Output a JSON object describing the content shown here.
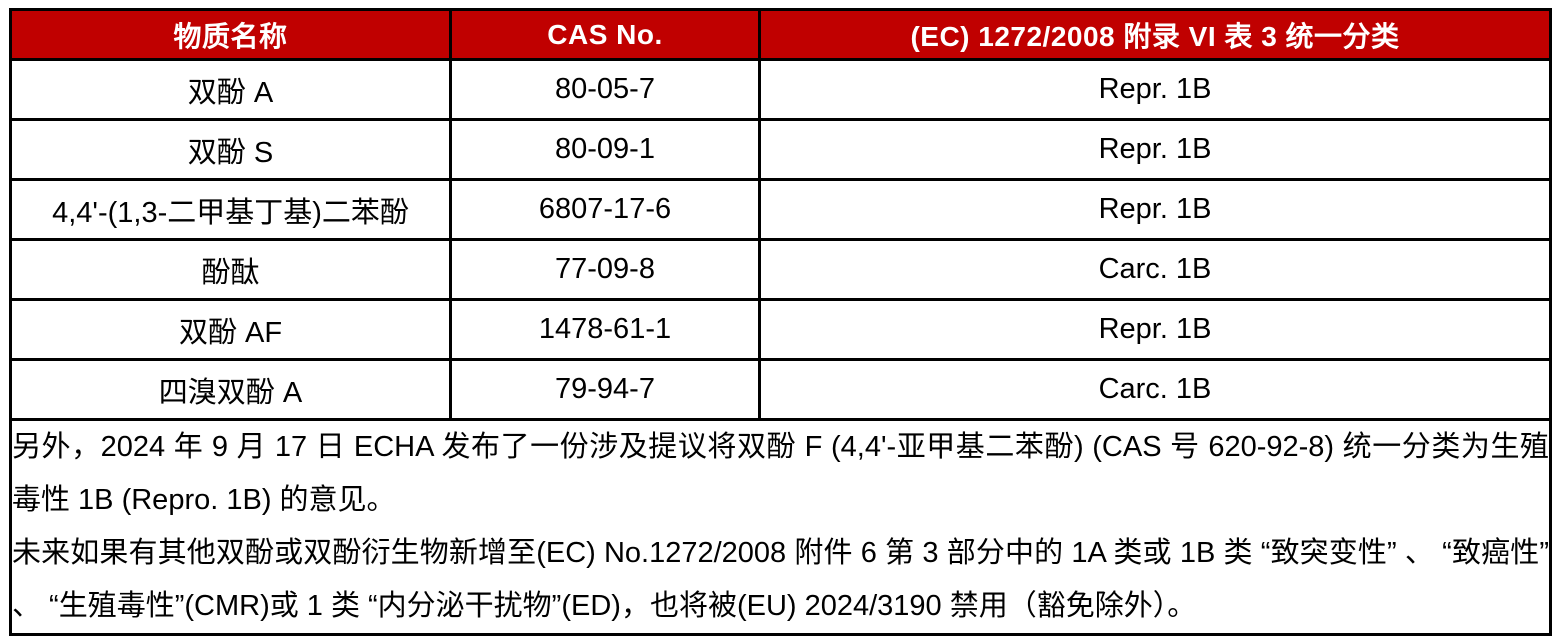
{
  "colors": {
    "header_bg": "#C00000",
    "header_text": "#FFFFFF",
    "border": "#000000",
    "cell_bg": "#FFFFFF",
    "cell_text": "#000000"
  },
  "table": {
    "headers": {
      "substance": "物质名称",
      "cas": "CAS No.",
      "classification": "(EC) 1272/2008 附录 VI 表 3 统一分类"
    },
    "rows": [
      {
        "substance": "双酚 A",
        "cas": "80-05-7",
        "classification": "Repr. 1B"
      },
      {
        "substance": "双酚 S",
        "cas": "80-09-1",
        "classification": "Repr. 1B"
      },
      {
        "substance": "4,4'-(1,3-二甲基丁基)二苯酚",
        "cas": "6807-17-6",
        "classification": "Repr. 1B"
      },
      {
        "substance": "酚酞",
        "cas": "77-09-8",
        "classification": "Carc. 1B"
      },
      {
        "substance": "双酚 AF",
        "cas": "1478-61-1",
        "classification": "Repr. 1B"
      },
      {
        "substance": "四溴双酚 A",
        "cas": "79-94-7",
        "classification": "Carc. 1B"
      }
    ],
    "notes": [
      "另外，2024 年 9 月 17 日 ECHA 发布了一份涉及提议将双酚 F (4,4'-亚甲基二苯酚) (CAS 号 620-92-8) 统一分类为生殖毒性 1B (Repro. 1B) 的意见。",
      "未来如果有其他双酚或双酚衍生物新增至(EC) No.1272/2008 附件 6 第 3 部分中的 1A 类或 1B 类 “致突变性” 、 “致癌性” 、 “生殖毒性”(CMR)或 1 类 “内分泌干扰物”(ED)，也将被(EU) 2024/3190 禁用（豁免除外）。"
    ]
  }
}
